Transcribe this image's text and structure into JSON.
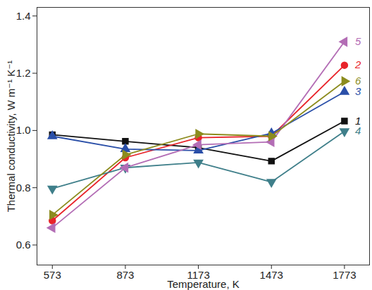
{
  "chart_data": {
    "type": "line",
    "x_label": "Temperature, K",
    "y_label": "Thermal conductivity, W m⁻¹ K⁻¹",
    "x": [
      573,
      873,
      1173,
      1473,
      1773
    ],
    "xlim": [
      510,
      1876
    ],
    "xticks": [
      573,
      873,
      1173,
      1473,
      1773
    ],
    "ylim": [
      0.53,
      1.43
    ],
    "yticks": [
      0.6,
      0.8,
      {
        "value": 1,
        "label": "1.0"
      },
      1.2,
      1.4
    ],
    "grid": false,
    "series": [
      {
        "name": "1",
        "color": "#111111",
        "marker": "square",
        "values": [
          0.985,
          0.962,
          0.94,
          0.893,
          1.033
        ]
      },
      {
        "name": "2",
        "color": "#e8232a",
        "marker": "circle",
        "values": [
          0.685,
          0.905,
          0.975,
          0.98,
          1.228
        ]
      },
      {
        "name": "3",
        "color": "#2a4fa8",
        "marker": "triangle-up",
        "values": [
          0.98,
          0.935,
          0.93,
          0.99,
          1.135
        ]
      },
      {
        "name": "4",
        "color": "#3f7f8a",
        "marker": "triangle-down",
        "values": [
          0.797,
          0.87,
          0.888,
          0.82,
          0.997
        ]
      },
      {
        "name": "5",
        "color": "#b36db5",
        "marker": "triangle-left",
        "values": [
          0.66,
          0.87,
          0.95,
          0.96,
          1.31
        ]
      },
      {
        "name": "6",
        "color": "#8c8c1e",
        "marker": "triangle-right",
        "values": [
          0.705,
          0.915,
          0.988,
          0.98,
          1.172
        ]
      }
    ]
  }
}
